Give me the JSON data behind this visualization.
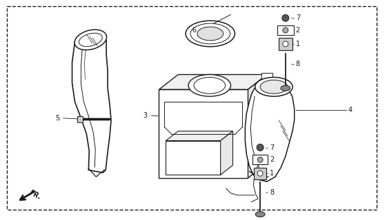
{
  "bg_color": "#ffffff",
  "line_color": "#1a1a1a",
  "fig_width": 5.61,
  "fig_height": 3.2,
  "dpi": 100
}
